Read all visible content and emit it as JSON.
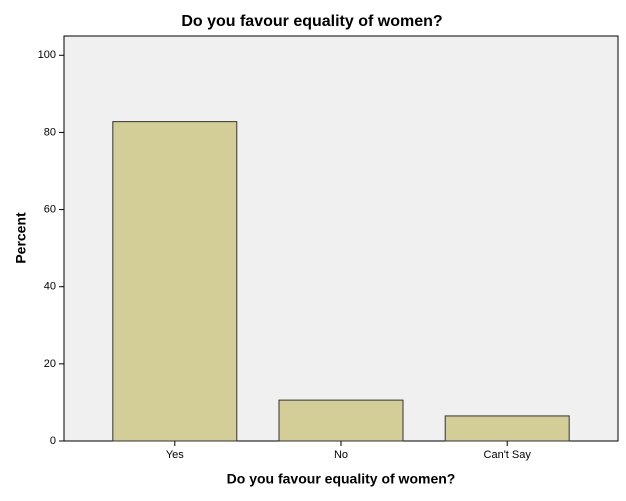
{
  "chart_data": {
    "type": "bar",
    "title": "Do you favour equality of women?",
    "x_label": "Do you favour equality of women?",
    "y_label": "Percent",
    "categories": [
      "Yes",
      "No",
      "Can't Say"
    ],
    "values": [
      82.8,
      10.6,
      6.5
    ],
    "color": "#d3ce97",
    "ylim": [
      0,
      105
    ],
    "yticks": [
      0,
      20,
      40,
      60,
      80,
      100
    ],
    "grid": false
  }
}
